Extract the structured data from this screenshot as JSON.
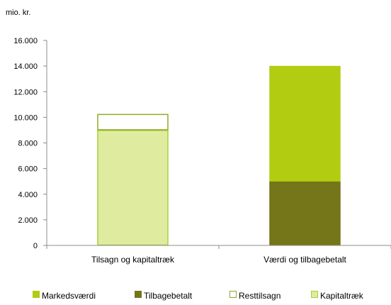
{
  "chart_data": {
    "type": "bar",
    "stacked": true,
    "unit_label": "mio. kr.",
    "categories": [
      "Tilsagn og kapitaltræk",
      "Værdi og tilbagebetalt"
    ],
    "y_ticks": [
      "0",
      "2.000",
      "4.000",
      "6.000",
      "8.000",
      "10.000",
      "12.000",
      "14.000",
      "16.000"
    ],
    "ylim": [
      0,
      16000
    ],
    "grid": false,
    "legend_position": "bottom",
    "series": [
      {
        "name": "Kapitaltræk",
        "color": "#dfeca0",
        "outline": "#a9cf38",
        "values": [
          9000,
          0
        ]
      },
      {
        "name": "Resttilsagn",
        "color": "#ffffff",
        "outline": "#8dab28",
        "values": [
          1250,
          0
        ]
      },
      {
        "name": "Tilbagebetalt",
        "color": "#757519",
        "outline": "#757519",
        "values": [
          0,
          5000
        ]
      },
      {
        "name": "Markedsværdi",
        "color": "#b2cc12",
        "outline": "#b2cc12",
        "values": [
          0,
          9000
        ]
      }
    ],
    "legend_order": [
      "Markedsværdi",
      "Tilbagebetalt",
      "Resttilsagn",
      "Kapitaltræk"
    ]
  }
}
